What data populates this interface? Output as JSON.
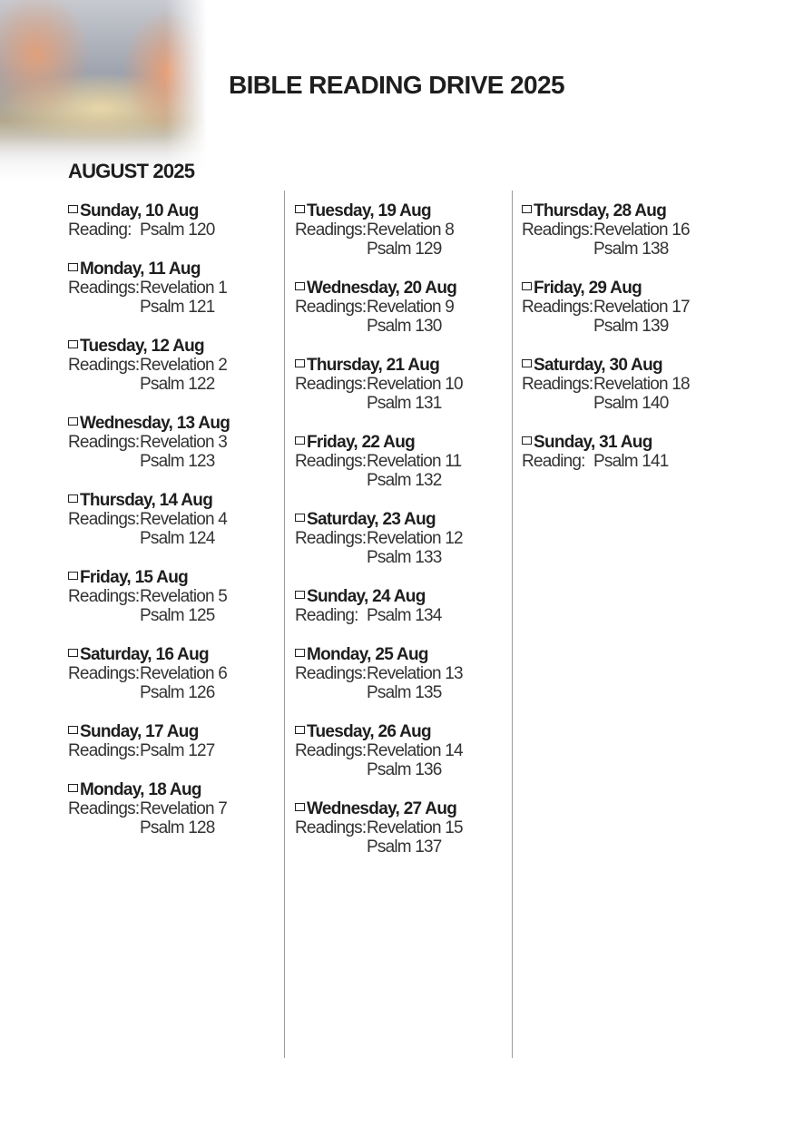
{
  "title": "BIBLE READING DRIVE 2025",
  "month": "AUGUST 2025",
  "columns": [
    [
      {
        "day": "Sunday, 10 Aug",
        "label": "Reading:",
        "readings": [
          "Psalm 120"
        ]
      },
      {
        "day": "Monday, 11 Aug",
        "label": "Readings:",
        "readings": [
          "Revelation 1",
          "Psalm 121"
        ]
      },
      {
        "day": "Tuesday, 12 Aug",
        "label": "Readings:",
        "readings": [
          "Revelation 2",
          "Psalm 122"
        ]
      },
      {
        "day": "Wednesday, 13 Aug",
        "label": "Readings:",
        "readings": [
          "Revelation 3",
          "Psalm 123"
        ]
      },
      {
        "day": "Thursday, 14 Aug",
        "label": "Readings:",
        "readings": [
          "Revelation 4",
          "Psalm 124"
        ]
      },
      {
        "day": "Friday, 15 Aug",
        "label": "Readings:",
        "readings": [
          "Revelation 5",
          "Psalm 125"
        ]
      },
      {
        "day": "Saturday, 16 Aug",
        "label": "Readings:",
        "readings": [
          "Revelation 6",
          "Psalm 126"
        ]
      },
      {
        "day": "Sunday, 17 Aug",
        "label": "Readings:",
        "readings": [
          "Psalm 127"
        ]
      },
      {
        "day": "Monday, 18 Aug",
        "label": "Readings:",
        "readings": [
          "Revelation 7",
          "Psalm 128"
        ]
      }
    ],
    [
      {
        "day": "Tuesday, 19 Aug",
        "label": "Readings:",
        "readings": [
          "Revelation 8",
          "Psalm 129"
        ]
      },
      {
        "day": "Wednesday, 20 Aug",
        "label": "Readings:",
        "readings": [
          "Revelation 9",
          "Psalm 130"
        ]
      },
      {
        "day": "Thursday, 21 Aug",
        "label": "Readings:",
        "readings": [
          "Revelation 10",
          "Psalm 131"
        ]
      },
      {
        "day": "Friday, 22 Aug",
        "label": "Readings:",
        "readings": [
          "Revelation 11",
          "Psalm 132"
        ]
      },
      {
        "day": "Saturday, 23 Aug",
        "label": "Readings:",
        "readings": [
          "Revelation 12",
          "Psalm 133"
        ]
      },
      {
        "day": "Sunday, 24 Aug",
        "label": "Reading:",
        "readings": [
          "Psalm 134"
        ]
      },
      {
        "day": "Monday, 25 Aug",
        "label": "Readings:",
        "readings": [
          "Revelation 13",
          "Psalm 135"
        ]
      },
      {
        "day": "Tuesday, 26 Aug",
        "label": "Readings:",
        "readings": [
          "Revelation 14",
          "Psalm 136"
        ]
      },
      {
        "day": "Wednesday, 27 Aug",
        "label": "Readings:",
        "readings": [
          "Revelation 15",
          "Psalm 137"
        ]
      }
    ],
    [
      {
        "day": "Thursday, 28 Aug",
        "label": "Readings:",
        "readings": [
          "Revelation 16",
          "Psalm 138"
        ]
      },
      {
        "day": "Friday, 29 Aug",
        "label": "Readings:",
        "readings": [
          "Revelation 17",
          "Psalm 139"
        ]
      },
      {
        "day": "Saturday, 30 Aug",
        "label": "Readings:",
        "readings": [
          "Revelation 18",
          "Psalm 140"
        ]
      },
      {
        "day": "Sunday, 31 Aug",
        "label": "Reading:",
        "readings": [
          "Psalm 141"
        ]
      }
    ]
  ]
}
